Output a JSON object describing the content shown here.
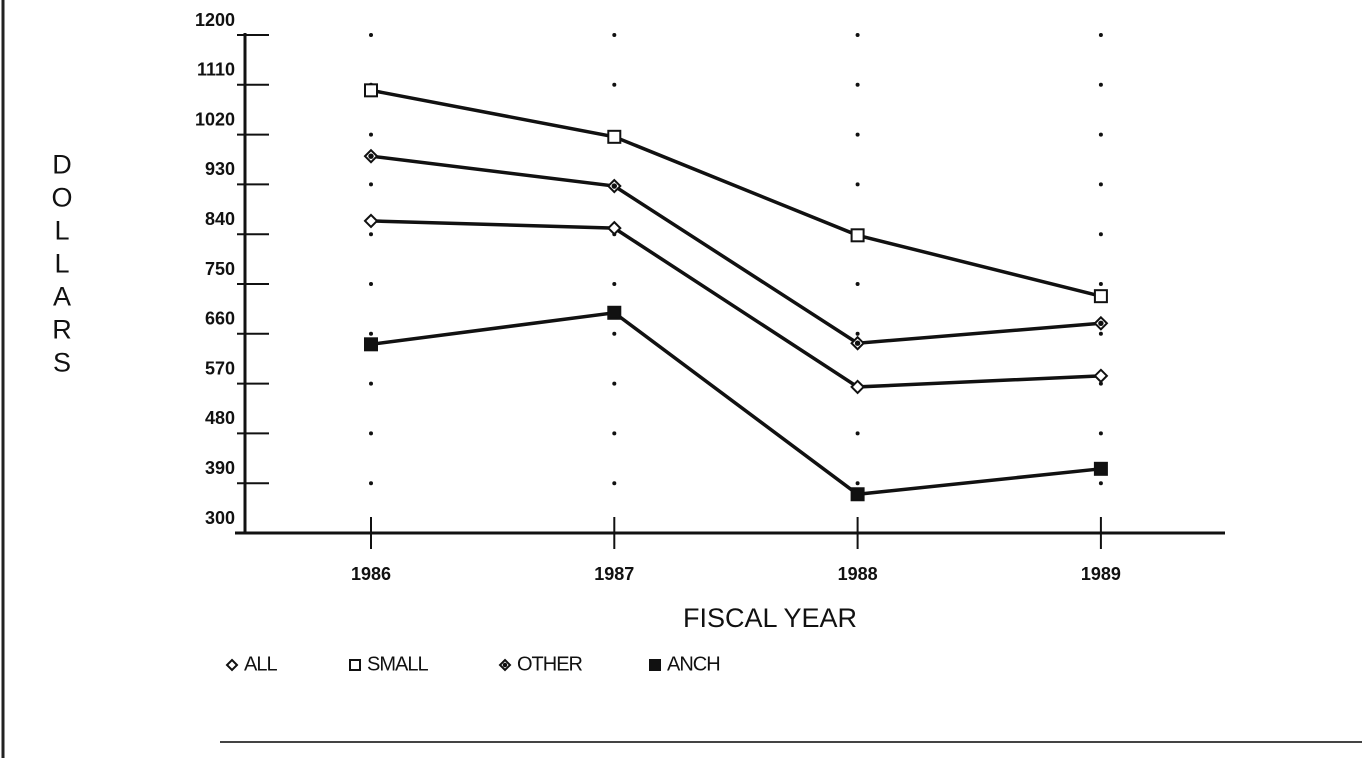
{
  "chart_data": {
    "type": "line",
    "x_label": "FISCAL YEAR",
    "y_label": "DOLLARS",
    "categories": [
      "1986",
      "1987",
      "1988",
      "1989"
    ],
    "series": [
      {
        "name": "ALL",
        "color": "#111111",
        "marker": "open-diamond",
        "values": [
          864,
          851,
          564,
          584
        ]
      },
      {
        "name": "SMALL",
        "color": "#111111",
        "marker": "open-square",
        "values": [
          1100,
          1016,
          838,
          728
        ]
      },
      {
        "name": "OTHER",
        "color": "#111111",
        "marker": "dot-diamond",
        "values": [
          981,
          927,
          643,
          679
        ]
      },
      {
        "name": "ANCH",
        "color": "#111111",
        "marker": "filled-square",
        "values": [
          641,
          698,
          370,
          416
        ]
      }
    ],
    "ylim": [
      300,
      1200
    ],
    "yticks": [
      300,
      390,
      480,
      570,
      660,
      750,
      840,
      930,
      1020,
      1110,
      1200
    ],
    "grid": true
  }
}
